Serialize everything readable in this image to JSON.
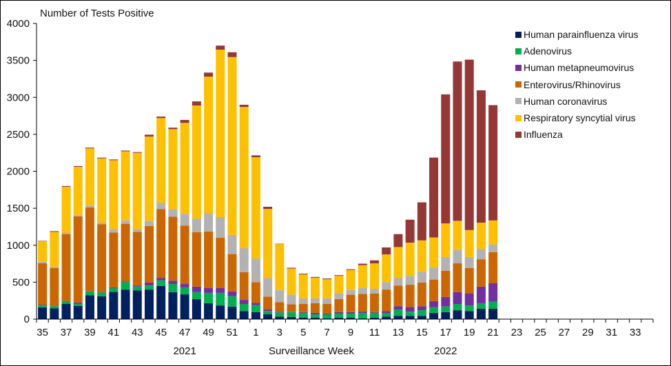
{
  "chart_data": {
    "type": "bar",
    "stacked": true,
    "title": "Number of Tests Positive",
    "xlabel": "Surveillance Week",
    "ylabel": "Number of Tests Positive",
    "ylim": [
      0,
      4000
    ],
    "yticks": [
      0,
      500,
      1000,
      1500,
      2000,
      2500,
      3000,
      3500,
      4000
    ],
    "year_labels": [
      {
        "label": "2021",
        "center_week_index": 12
      },
      {
        "label": "2022",
        "center_week_index": 34
      }
    ],
    "categories": [
      "35",
      "36",
      "37",
      "38",
      "39",
      "40",
      "41",
      "42",
      "43",
      "44",
      "45",
      "46",
      "47",
      "48",
      "49",
      "50",
      "51",
      "52",
      "1",
      "2",
      "3",
      "4",
      "5",
      "6",
      "7",
      "8",
      "9",
      "10",
      "11",
      "12",
      "13",
      "14",
      "15",
      "16",
      "17",
      "18",
      "19",
      "20",
      "21",
      "22",
      "23",
      "24",
      "25",
      "26",
      "27",
      "28",
      "29",
      "30",
      "31",
      "32",
      "33",
      "34"
    ],
    "xtick_labels_shown": [
      "35",
      "37",
      "39",
      "41",
      "43",
      "45",
      "47",
      "49",
      "51",
      "1",
      "3",
      "5",
      "7",
      "9",
      "11",
      "13",
      "15",
      "17",
      "19",
      "21",
      "23",
      "25",
      "27",
      "29",
      "31",
      "33"
    ],
    "legend_position": "top-right",
    "grid": false,
    "series": [
      {
        "name": "Human parainfluenza virus",
        "color": "#002060",
        "values": [
          160,
          145,
          205,
          180,
          325,
          310,
          370,
          400,
          390,
          400,
          450,
          365,
          335,
          270,
          215,
          185,
          170,
          110,
          95,
          65,
          35,
          30,
          20,
          20,
          10,
          20,
          20,
          10,
          20,
          35,
          45,
          45,
          45,
          85,
          95,
          120,
          110,
          140,
          140
        ]
      },
      {
        "name": "Adenovirus",
        "color": "#00B050",
        "values": [
          25,
          30,
          30,
          30,
          50,
          50,
          50,
          100,
          50,
          55,
          75,
          110,
          95,
          95,
          140,
          170,
          140,
          95,
          95,
          45,
          55,
          65,
          65,
          45,
          55,
          55,
          55,
          75,
          65,
          45,
          85,
          55,
          75,
          75,
          75,
          85,
          75,
          75,
          95
        ]
      },
      {
        "name": "Human metapneumovirus",
        "color": "#7030A0",
        "values": [
          10,
          5,
          10,
          15,
          5,
          5,
          10,
          10,
          15,
          40,
          30,
          45,
          45,
          75,
          65,
          65,
          65,
          55,
          30,
          20,
          10,
          5,
          10,
          20,
          10,
          20,
          20,
          20,
          10,
          30,
          45,
          65,
          55,
          85,
          130,
          160,
          160,
          225,
          250
        ]
      },
      {
        "name": "Enterovirus/Rhinovirus",
        "color": "#CC6600",
        "values": [
          560,
          510,
          905,
          1165,
          1130,
          920,
          740,
          780,
          725,
          765,
          935,
          865,
          790,
          735,
          765,
          680,
          505,
          375,
          280,
          175,
          130,
          100,
          110,
          130,
          130,
          175,
          235,
          235,
          250,
          290,
          280,
          300,
          320,
          290,
          355,
          390,
          345,
          370,
          420
        ]
      },
      {
        "name": "Human coronavirus",
        "color": "#B2B2B2",
        "values": [
          20,
          20,
          20,
          20,
          25,
          20,
          50,
          45,
          40,
          70,
          85,
          105,
          160,
          185,
          250,
          280,
          260,
          325,
          320,
          250,
          160,
          130,
          75,
          65,
          75,
          75,
          65,
          85,
          65,
          100,
          100,
          120,
          150,
          160,
          185,
          185,
          150,
          140,
          105
        ]
      },
      {
        "name": "Respiratory syncytial virus",
        "color": "#FFC000",
        "values": [
          280,
          470,
          620,
          650,
          775,
          870,
          930,
          935,
          1030,
          1140,
          1145,
          1080,
          1230,
          1530,
          1845,
          2265,
          2405,
          1910,
          1370,
          935,
          625,
          355,
          325,
          280,
          260,
          240,
          270,
          305,
          345,
          375,
          420,
          450,
          420,
          410,
          455,
          390,
          365,
          355,
          325
        ]
      },
      {
        "name": "Influenza",
        "color": "#953735",
        "values": [
          5,
          10,
          10,
          10,
          10,
          10,
          10,
          10,
          10,
          25,
          20,
          20,
          40,
          55,
          55,
          55,
          65,
          30,
          25,
          30,
          5,
          10,
          10,
          10,
          10,
          10,
          10,
          20,
          40,
          95,
          175,
          310,
          515,
          1080,
          1745,
          2155,
          2305,
          1790,
          1560
        ]
      }
    ]
  }
}
